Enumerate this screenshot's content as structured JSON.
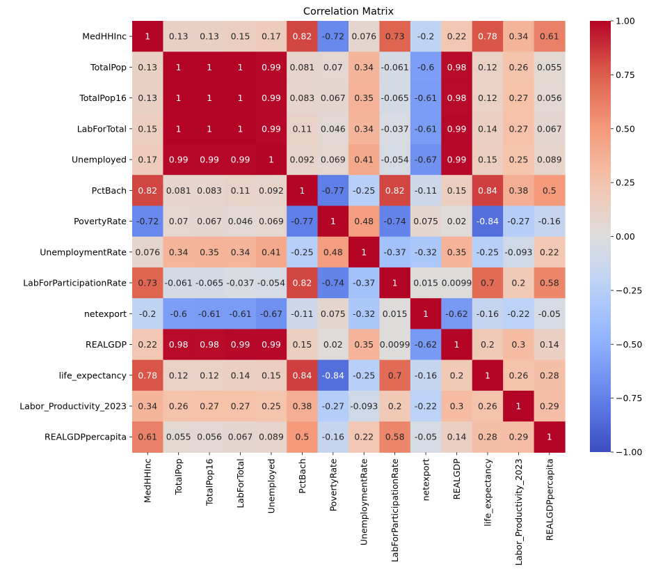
{
  "chart_data": {
    "type": "heatmap",
    "title": "Correlation Matrix",
    "colormap": "coolwarm",
    "vmin": -1.0,
    "vmax": 1.0,
    "colorbar_ticks": [
      "1.00",
      "0.75",
      "0.50",
      "0.25",
      "0.00",
      "−0.25",
      "−0.50",
      "−0.75",
      "−1.00"
    ],
    "colorbar_tick_values": [
      1.0,
      0.75,
      0.5,
      0.25,
      0.0,
      -0.25,
      -0.5,
      -0.75,
      -1.0
    ],
    "variables": [
      "MedHHInc",
      "TotalPop",
      "TotalPop16",
      "LabForTotal",
      "Unemployed",
      "PctBach",
      "PovertyRate",
      "UnemploymentRate",
      "LabForParticipationRate",
      "netexport",
      "REALGDP",
      "life_expectancy",
      "Labor_Productivity_2023",
      "REALGDPpercapita"
    ],
    "values": [
      [
        1,
        0.13,
        0.13,
        0.15,
        0.17,
        0.82,
        -0.72,
        0.076,
        0.73,
        -0.2,
        0.22,
        0.78,
        0.34,
        0.61
      ],
      [
        0.13,
        1,
        1,
        1,
        0.99,
        0.081,
        0.07,
        0.34,
        -0.061,
        -0.6,
        0.98,
        0.12,
        0.26,
        0.055
      ],
      [
        0.13,
        1,
        1,
        1,
        0.99,
        0.083,
        0.067,
        0.35,
        -0.065,
        -0.61,
        0.98,
        0.12,
        0.27,
        0.056
      ],
      [
        0.15,
        1,
        1,
        1,
        0.99,
        0.11,
        0.046,
        0.34,
        -0.037,
        -0.61,
        0.99,
        0.14,
        0.27,
        0.067
      ],
      [
        0.17,
        0.99,
        0.99,
        0.99,
        1,
        0.092,
        0.069,
        0.41,
        -0.054,
        -0.67,
        0.99,
        0.15,
        0.25,
        0.089
      ],
      [
        0.82,
        0.081,
        0.083,
        0.11,
        0.092,
        1,
        -0.77,
        -0.25,
        0.82,
        -0.11,
        0.15,
        0.84,
        0.38,
        0.5
      ],
      [
        -0.72,
        0.07,
        0.067,
        0.046,
        0.069,
        -0.77,
        1,
        0.48,
        -0.74,
        0.075,
        0.02,
        -0.84,
        -0.27,
        -0.16
      ],
      [
        0.076,
        0.34,
        0.35,
        0.34,
        0.41,
        -0.25,
        0.48,
        1,
        -0.37,
        -0.32,
        0.35,
        -0.25,
        -0.093,
        0.22
      ],
      [
        0.73,
        -0.061,
        -0.065,
        -0.037,
        -0.054,
        0.82,
        -0.74,
        -0.37,
        1,
        0.015,
        0.0099,
        0.7,
        0.2,
        0.58
      ],
      [
        -0.2,
        -0.6,
        -0.61,
        -0.61,
        -0.67,
        -0.11,
        0.075,
        -0.32,
        0.015,
        1,
        -0.62,
        -0.16,
        -0.22,
        -0.05
      ],
      [
        0.22,
        0.98,
        0.98,
        0.99,
        0.99,
        0.15,
        0.02,
        0.35,
        0.0099,
        -0.62,
        1,
        0.2,
        0.3,
        0.14
      ],
      [
        0.78,
        0.12,
        0.12,
        0.14,
        0.15,
        0.84,
        -0.84,
        -0.25,
        0.7,
        -0.16,
        0.2,
        1,
        0.26,
        0.28
      ],
      [
        0.34,
        0.26,
        0.27,
        0.27,
        0.25,
        0.38,
        -0.27,
        -0.093,
        0.2,
        -0.22,
        0.3,
        0.26,
        1,
        0.29
      ],
      [
        0.61,
        0.055,
        0.056,
        0.067,
        0.089,
        0.5,
        -0.16,
        0.22,
        0.58,
        -0.05,
        0.14,
        0.28,
        0.29,
        1
      ]
    ],
    "labels": [
      [
        "1",
        "0.13",
        "0.13",
        "0.15",
        "0.17",
        "0.82",
        "-0.72",
        "0.076",
        "0.73",
        "-0.2",
        "0.22",
        "0.78",
        "0.34",
        "0.61"
      ],
      [
        "0.13",
        "1",
        "1",
        "1",
        "0.99",
        "0.081",
        "0.07",
        "0.34",
        "-0.061",
        "-0.6",
        "0.98",
        "0.12",
        "0.26",
        "0.055"
      ],
      [
        "0.13",
        "1",
        "1",
        "1",
        "0.99",
        "0.083",
        "0.067",
        "0.35",
        "-0.065",
        "-0.61",
        "0.98",
        "0.12",
        "0.27",
        "0.056"
      ],
      [
        "0.15",
        "1",
        "1",
        "1",
        "0.99",
        "0.11",
        "0.046",
        "0.34",
        "-0.037",
        "-0.61",
        "0.99",
        "0.14",
        "0.27",
        "0.067"
      ],
      [
        "0.17",
        "0.99",
        "0.99",
        "0.99",
        "1",
        "0.092",
        "0.069",
        "0.41",
        "-0.054",
        "-0.67",
        "0.99",
        "0.15",
        "0.25",
        "0.089"
      ],
      [
        "0.82",
        "0.081",
        "0.083",
        "0.11",
        "0.092",
        "1",
        "-0.77",
        "-0.25",
        "0.82",
        "-0.11",
        "0.15",
        "0.84",
        "0.38",
        "0.5"
      ],
      [
        "-0.72",
        "0.07",
        "0.067",
        "0.046",
        "0.069",
        "-0.77",
        "1",
        "0.48",
        "-0.74",
        "0.075",
        "0.02",
        "-0.84",
        "-0.27",
        "-0.16"
      ],
      [
        "0.076",
        "0.34",
        "0.35",
        "0.34",
        "0.41",
        "-0.25",
        "0.48",
        "1",
        "-0.37",
        "-0.32",
        "0.35",
        "-0.25",
        "-0.093",
        "0.22"
      ],
      [
        "0.73",
        "-0.061",
        "-0.065",
        "-0.037",
        "-0.054",
        "0.82",
        "-0.74",
        "-0.37",
        "1",
        "0.015",
        "0.0099",
        "0.7",
        "0.2",
        "0.58"
      ],
      [
        "-0.2",
        "-0.6",
        "-0.61",
        "-0.61",
        "-0.67",
        "-0.11",
        "0.075",
        "-0.32",
        "0.015",
        "1",
        "-0.62",
        "-0.16",
        "-0.22",
        "-0.05"
      ],
      [
        "0.22",
        "0.98",
        "0.98",
        "0.99",
        "0.99",
        "0.15",
        "0.02",
        "0.35",
        "0.0099",
        "-0.62",
        "1",
        "0.2",
        "0.3",
        "0.14"
      ],
      [
        "0.78",
        "0.12",
        "0.12",
        "0.14",
        "0.15",
        "0.84",
        "-0.84",
        "-0.25",
        "0.7",
        "-0.16",
        "0.2",
        "1",
        "0.26",
        "0.28"
      ],
      [
        "0.34",
        "0.26",
        "0.27",
        "0.27",
        "0.25",
        "0.38",
        "-0.27",
        "-0.093",
        "0.2",
        "-0.22",
        "0.3",
        "0.26",
        "1",
        "0.29"
      ],
      [
        "0.61",
        "0.055",
        "0.056",
        "0.067",
        "0.089",
        "0.5",
        "-0.16",
        "0.22",
        "0.58",
        "-0.05",
        "0.14",
        "0.28",
        "0.29",
        "1"
      ]
    ]
  }
}
